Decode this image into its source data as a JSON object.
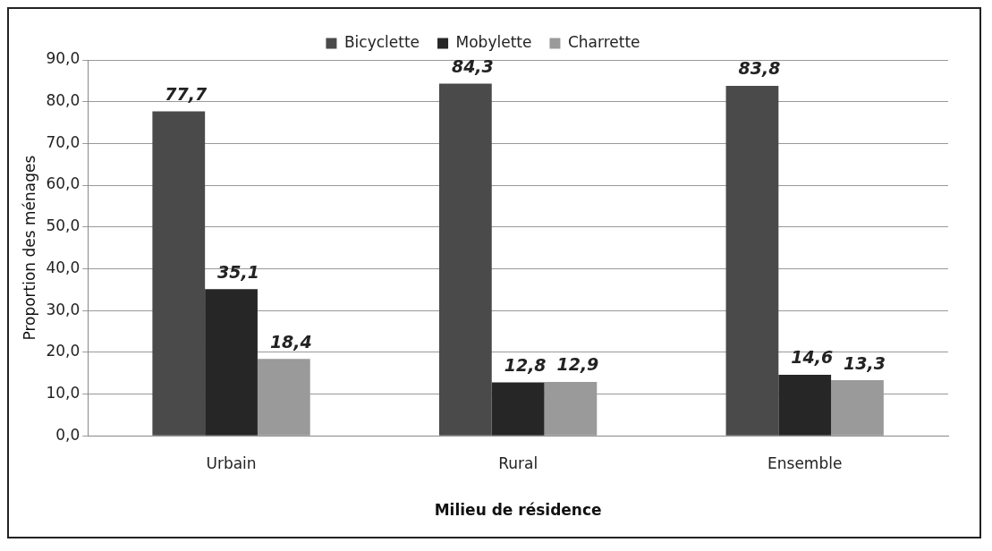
{
  "chart_data": {
    "type": "bar",
    "xlabel": "Milieu de résidence",
    "ylabel": "Proportion des ménages",
    "categories": [
      "Urbain",
      "Rural",
      "Ensemble"
    ],
    "series": [
      {
        "name": "Bicyclette",
        "color": "#4a4a4a",
        "values": [
          77.7,
          84.3,
          83.8
        ],
        "value_labels": [
          "77,7",
          "84,3",
          "83,8"
        ]
      },
      {
        "name": "Mobylette",
        "color": "#262626",
        "values": [
          35.1,
          12.8,
          14.6
        ],
        "value_labels": [
          "35,1",
          "12,8",
          "14,6"
        ]
      },
      {
        "name": "Charrette",
        "color": "#9a9a9a",
        "values": [
          18.4,
          12.9,
          13.3
        ],
        "value_labels": [
          "18,4",
          "12,9",
          "13,3"
        ]
      }
    ],
    "ylim": [
      0,
      90
    ],
    "yticks": [
      {
        "value": 0,
        "label": "0,0"
      },
      {
        "value": 10,
        "label": "10,0"
      },
      {
        "value": 20,
        "label": "20,0"
      },
      {
        "value": 30,
        "label": "30,0"
      },
      {
        "value": 40,
        "label": "40,0"
      },
      {
        "value": 50,
        "label": "50,0"
      },
      {
        "value": 60,
        "label": "60,0"
      },
      {
        "value": 70,
        "label": "70,0"
      },
      {
        "value": 80,
        "label": "80,0"
      },
      {
        "value": 90,
        "label": "90,0"
      }
    ],
    "grid": "y",
    "legend": "top"
  }
}
